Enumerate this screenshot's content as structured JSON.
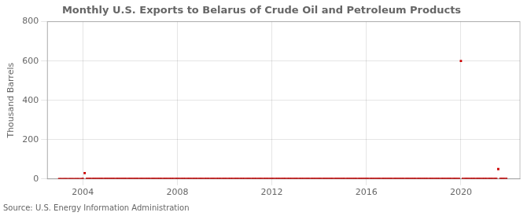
{
  "chart_data": {
    "type": "scatter",
    "title": "Monthly U.S. Exports to Belarus of Crude Oil and Petroleum Products",
    "ylabel": "Thousand Barrels",
    "annotation": "Source: U.S. Energy Information Administration",
    "color": "#cc0000",
    "marker": "square",
    "grid": true,
    "xlim": [
      2002.5,
      2022.5
    ],
    "xticks": [
      2004,
      2008,
      2012,
      2016,
      2020
    ],
    "ylim": [
      0,
      800
    ],
    "yticks": [
      0,
      200,
      400,
      600,
      800
    ],
    "x": [
      2003,
      2003.08,
      2003.17,
      2003.25,
      2003.33,
      2003.42,
      2003.5,
      2003.58,
      2003.67,
      2003.75,
      2003.83,
      2003.92,
      2004,
      2004.08,
      2004.17,
      2004.25,
      2004.33,
      2004.42,
      2004.5,
      2004.58,
      2004.67,
      2004.75,
      2004.83,
      2004.92,
      2005,
      2005.08,
      2005.17,
      2005.25,
      2005.33,
      2005.42,
      2005.5,
      2005.58,
      2005.67,
      2005.75,
      2005.83,
      2005.92,
      2006,
      2006.08,
      2006.17,
      2006.25,
      2006.33,
      2006.42,
      2006.5,
      2006.58,
      2006.67,
      2006.75,
      2006.83,
      2006.92,
      2007,
      2007.08,
      2007.17,
      2007.25,
      2007.33,
      2007.42,
      2007.5,
      2007.58,
      2007.67,
      2007.75,
      2007.83,
      2007.92,
      2008,
      2008.08,
      2008.17,
      2008.25,
      2008.33,
      2008.42,
      2008.5,
      2008.58,
      2008.67,
      2008.75,
      2008.83,
      2008.92,
      2009,
      2009.08,
      2009.17,
      2009.25,
      2009.33,
      2009.42,
      2009.5,
      2009.58,
      2009.67,
      2009.75,
      2009.83,
      2009.92,
      2010,
      2010.08,
      2010.17,
      2010.25,
      2010.33,
      2010.42,
      2010.5,
      2010.58,
      2010.67,
      2010.75,
      2010.83,
      2010.92,
      2011,
      2011.08,
      2011.17,
      2011.25,
      2011.33,
      2011.42,
      2011.5,
      2011.58,
      2011.67,
      2011.75,
      2011.83,
      2011.92,
      2012,
      2012.08,
      2012.17,
      2012.25,
      2012.33,
      2012.42,
      2012.5,
      2012.58,
      2012.67,
      2012.75,
      2012.83,
      2012.92,
      2013,
      2013.08,
      2013.17,
      2013.25,
      2013.33,
      2013.42,
      2013.5,
      2013.58,
      2013.67,
      2013.75,
      2013.83,
      2013.92,
      2014,
      2014.08,
      2014.17,
      2014.25,
      2014.33,
      2014.42,
      2014.5,
      2014.58,
      2014.67,
      2014.75,
      2014.83,
      2014.92,
      2015,
      2015.08,
      2015.17,
      2015.25,
      2015.33,
      2015.42,
      2015.5,
      2015.58,
      2015.67,
      2015.75,
      2015.83,
      2015.92,
      2016,
      2016.08,
      2016.17,
      2016.25,
      2016.33,
      2016.42,
      2016.5,
      2016.58,
      2016.67,
      2016.75,
      2016.83,
      2016.92,
      2017,
      2017.08,
      2017.17,
      2017.25,
      2017.33,
      2017.42,
      2017.5,
      2017.58,
      2017.67,
      2017.75,
      2017.83,
      2017.92,
      2018,
      2018.08,
      2018.17,
      2018.25,
      2018.33,
      2018.42,
      2018.5,
      2018.58,
      2018.67,
      2018.75,
      2018.83,
      2018.92,
      2019,
      2019.08,
      2019.17,
      2019.25,
      2019.33,
      2019.42,
      2019.5,
      2019.58,
      2019.67,
      2019.75,
      2019.83,
      2019.92,
      2020,
      2020.08,
      2020.17,
      2020.25,
      2020.33,
      2020.42,
      2020.5,
      2020.58,
      2020.67,
      2020.75,
      2020.83,
      2020.92,
      2021,
      2021.08,
      2021.17,
      2021.25,
      2021.33,
      2021.42,
      2021.5,
      2021.58,
      2021.67,
      2021.75,
      2021.83,
      2021.92
    ],
    "values": [
      0,
      0,
      0,
      0,
      0,
      0,
      0,
      0,
      0,
      0,
      0,
      0,
      1,
      30,
      1,
      1,
      1,
      1,
      1,
      1,
      1,
      1,
      1,
      1,
      1,
      1,
      1,
      1,
      1,
      1,
      1,
      1,
      1,
      1,
      1,
      1,
      1,
      1,
      1,
      1,
      1,
      1,
      1,
      1,
      1,
      1,
      1,
      1,
      1,
      1,
      1,
      1,
      1,
      1,
      1,
      1,
      1,
      1,
      1,
      1,
      1,
      1,
      1,
      1,
      1,
      1,
      1,
      1,
      1,
      1,
      1,
      1,
      1,
      1,
      1,
      1,
      1,
      1,
      1,
      1,
      1,
      1,
      1,
      1,
      1,
      1,
      1,
      1,
      1,
      1,
      1,
      1,
      1,
      1,
      1,
      1,
      1,
      1,
      1,
      1,
      1,
      1,
      1,
      1,
      1,
      1,
      1,
      1,
      1,
      1,
      1,
      1,
      1,
      1,
      1,
      1,
      1,
      1,
      1,
      1,
      1,
      1,
      1,
      1,
      1,
      1,
      1,
      1,
      1,
      1,
      1,
      1,
      1,
      1,
      1,
      1,
      1,
      1,
      1,
      1,
      1,
      1,
      1,
      1,
      1,
      1,
      1,
      1,
      1,
      1,
      1,
      1,
      1,
      1,
      1,
      1,
      1,
      1,
      1,
      1,
      1,
      1,
      1,
      1,
      1,
      1,
      1,
      1,
      1,
      1,
      1,
      1,
      1,
      1,
      1,
      1,
      1,
      1,
      1,
      1,
      1,
      1,
      1,
      1,
      1,
      1,
      1,
      1,
      1,
      1,
      1,
      1,
      1,
      1,
      1,
      1,
      1,
      1,
      1,
      1,
      1,
      1,
      1,
      1,
      600,
      1,
      1,
      1,
      1,
      1,
      1,
      1,
      1,
      1,
      1,
      1,
      1,
      1,
      1,
      1,
      1,
      1,
      1,
      50,
      1,
      1,
      1,
      1
    ]
  }
}
